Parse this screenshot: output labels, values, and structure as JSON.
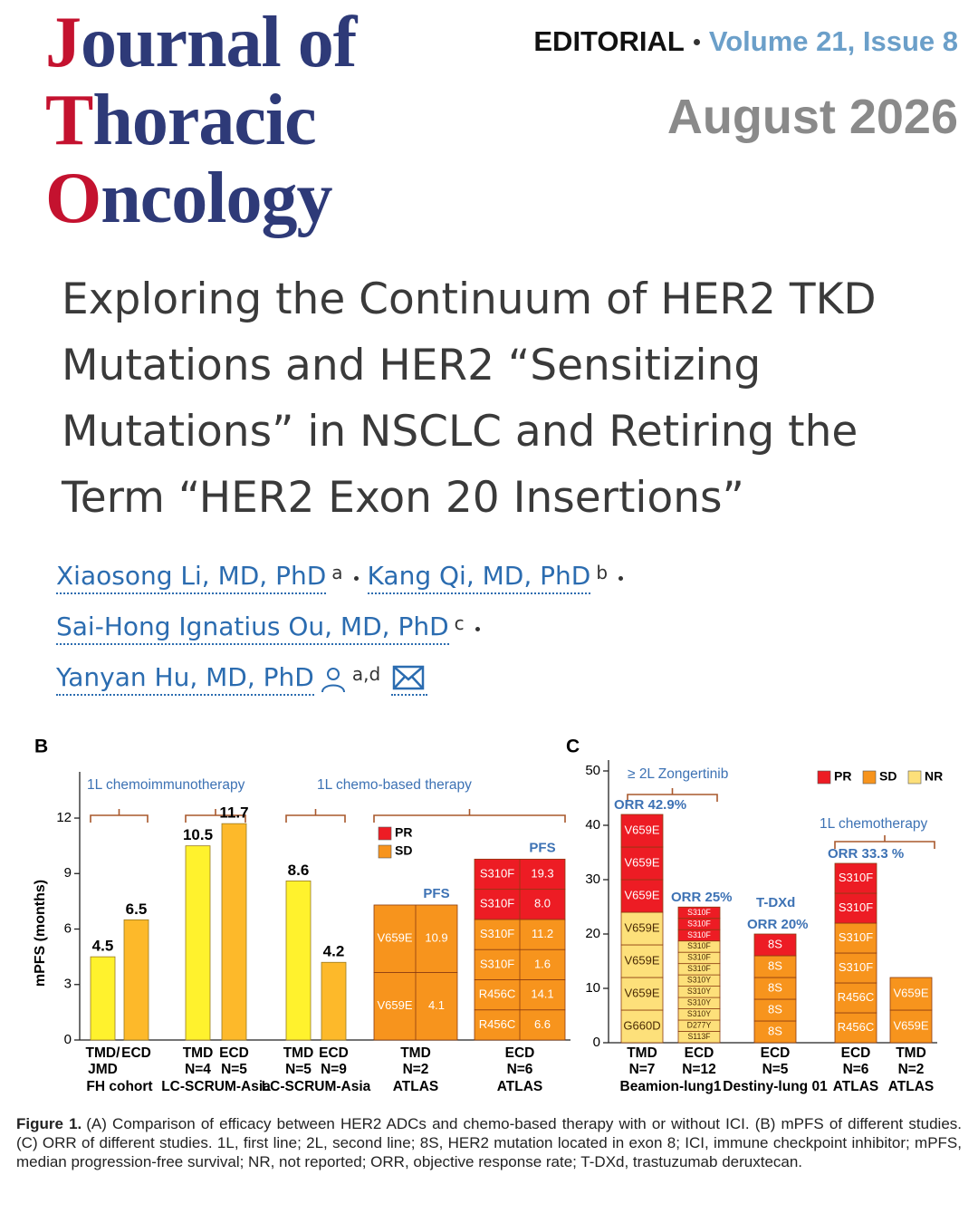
{
  "header": {
    "journal": [
      "Journal of",
      "Thoracic",
      "Oncology"
    ],
    "section": "EDITORIAL",
    "issue": "Volume 21, Issue 8",
    "date": "August 2026"
  },
  "article": {
    "title": [
      "Exploring the Continuum of HER2 TKD",
      "Mutations and HER2 “Sensitizing",
      "Mutations” in NSCLC and Retiring the",
      "Term “HER2 Exon 20 Insertions”"
    ],
    "authors": [
      {
        "name": "Xiaosong Li, MD, PhD",
        "affiliation": "a"
      },
      {
        "name": "Kang Qi, MD, PhD",
        "affiliation": "b"
      },
      {
        "name": "Sai-Hong Ignatius Ou, MD, PhD",
        "affiliation": "c"
      },
      {
        "name": "Yanyan Hu, MD, PhD",
        "affiliation": "a,d"
      }
    ]
  },
  "chart_data": [
    {
      "type": "bar",
      "panel": "B",
      "ylabel": "mPFS (months)",
      "ylim": [
        0,
        14.5
      ],
      "yticks": [
        0,
        3,
        6,
        9,
        12
      ],
      "annotations": [
        "1L chemoimmunotherapy",
        "1L chemo-based  therapy"
      ],
      "legend": [
        {
          "name": "PR",
          "color": "#ed1c24"
        },
        {
          "name": "SD",
          "color": "#f7941d"
        }
      ],
      "groups": [
        {
          "study": "FH cohort",
          "bars": [
            {
              "category": [
                "TMD/",
                "JMD"
              ],
              "value": 4.5,
              "color": "#fff22d"
            },
            {
              "category": [
                "ECD"
              ],
              "value": 6.5,
              "color": "#fdb92a"
            }
          ]
        },
        {
          "study": "LC-SCRUM-Asia",
          "bars": [
            {
              "category": [
                "TMD",
                "N=4"
              ],
              "value": 10.5,
              "color": "#fff22d"
            },
            {
              "category": [
                "ECD",
                "N=5"
              ],
              "value": 11.7,
              "color": "#fdb92a"
            }
          ]
        },
        {
          "study": "LC-SCRUM-Asia",
          "bars": [
            {
              "category": [
                "TMD",
                "N=5"
              ],
              "value": 8.6,
              "color": "#fff22d"
            },
            {
              "category": [
                "ECD",
                "N=9"
              ],
              "value": 4.2,
              "color": "#fdb92a"
            }
          ]
        },
        {
          "study": "ATLAS",
          "bars": [
            {
              "category": [
                "TMD",
                "N=2"
              ],
              "pfs_header": "PFS",
              "segments": [
                {
                  "mutation": "V659E",
                  "pfs": 4.1,
                  "value": 3.65,
                  "color": "#f7941d"
                },
                {
                  "mutation": "V659E",
                  "pfs": 10.9,
                  "value": 3.65,
                  "color": "#f7941d"
                }
              ]
            }
          ]
        },
        {
          "study": "ATLAS",
          "bars": [
            {
              "category": [
                "ECD",
                "N=6"
              ],
              "pfs_header": "PFS",
              "segments": [
                {
                  "mutation": "R456C",
                  "pfs": 6.6,
                  "value": 1.63,
                  "color": "#f7941d"
                },
                {
                  "mutation": "R456C",
                  "pfs": 14.1,
                  "value": 1.63,
                  "color": "#f7941d"
                },
                {
                  "mutation": "S310F",
                  "pfs": 1.6,
                  "value": 1.63,
                  "color": "#f7941d"
                },
                {
                  "mutation": "S310F",
                  "pfs": 11.2,
                  "value": 1.63,
                  "color": "#f7941d"
                },
                {
                  "mutation": "S310F",
                  "pfs": 8,
                  "pfs_label": "8.0",
                  "value": 1.63,
                  "color": "#ed1c24"
                },
                {
                  "mutation": "S310F",
                  "pfs": 19.3,
                  "value": 1.63,
                  "color": "#ed1c24"
                }
              ]
            }
          ]
        }
      ]
    },
    {
      "type": "bar",
      "panel": "C",
      "ylim": [
        0,
        52
      ],
      "yticks": [
        0,
        10,
        20,
        30,
        40,
        50
      ],
      "annotations": [
        "≥ 2L Zongertinib",
        "1L chemotherapy"
      ],
      "legend": [
        {
          "name": "PR",
          "color": "#ed1c24"
        },
        {
          "name": "SD",
          "color": "#f7941d"
        },
        {
          "name": "NR",
          "color": "#fde07a"
        }
      ],
      "groups": [
        {
          "study": "Beamion-lung1",
          "bars": [
            {
              "category": [
                "TMD",
                "N=7"
              ],
              "orr": "ORR 42.9%",
              "segments": [
                {
                  "mutation": "G660D",
                  "value": 6,
                  "color": "#fde07a"
                },
                {
                  "mutation": "V659E",
                  "value": 6,
                  "color": "#fde07a"
                },
                {
                  "mutation": "V659E",
                  "value": 6,
                  "color": "#fde07a"
                },
                {
                  "mutation": "V659E",
                  "value": 6,
                  "color": "#fde07a"
                },
                {
                  "mutation": "V659E",
                  "value": 6,
                  "color": "#ed1c24"
                },
                {
                  "mutation": "V659E",
                  "value": 6,
                  "color": "#ed1c24"
                },
                {
                  "mutation": "V659E",
                  "value": 6,
                  "color": "#ed1c24"
                }
              ]
            },
            {
              "category": [
                "ECD",
                "N=12"
              ],
              "orr": "ORR 25%",
              "segments": [
                {
                  "mutation": "S113F",
                  "value": 2.08,
                  "color": "#fde07a"
                },
                {
                  "mutation": "D277Y",
                  "value": 2.08,
                  "color": "#fde07a"
                },
                {
                  "mutation": "S310Y",
                  "value": 2.08,
                  "color": "#fde07a"
                },
                {
                  "mutation": "S310Y",
                  "value": 2.08,
                  "color": "#fde07a"
                },
                {
                  "mutation": "S310Y",
                  "value": 2.08,
                  "color": "#fde07a"
                },
                {
                  "mutation": "S310Y",
                  "value": 2.08,
                  "color": "#fde07a"
                },
                {
                  "mutation": "S310F",
                  "value": 2.08,
                  "color": "#fde07a"
                },
                {
                  "mutation": "S310F",
                  "value": 2.08,
                  "color": "#fde07a"
                },
                {
                  "mutation": "S310F",
                  "value": 2.08,
                  "color": "#fde07a"
                },
                {
                  "mutation": "S310F",
                  "value": 2.08,
                  "color": "#ed1c24"
                },
                {
                  "mutation": "S310F",
                  "value": 2.08,
                  "color": "#ed1c24"
                },
                {
                  "mutation": "S310F",
                  "value": 2.08,
                  "color": "#ed1c24"
                }
              ]
            }
          ]
        },
        {
          "study": "Destiny-lung 01",
          "bars": [
            {
              "category": [
                "ECD",
                "N=5"
              ],
              "label": "T-DXd",
              "orr": "ORR 20%",
              "segments": [
                {
                  "mutation": "8S",
                  "value": 4,
                  "color": "#f7941d"
                },
                {
                  "mutation": "8S",
                  "value": 4,
                  "color": "#f7941d"
                },
                {
                  "mutation": "8S",
                  "value": 4,
                  "color": "#f7941d"
                },
                {
                  "mutation": "8S",
                  "value": 4,
                  "color": "#f7941d"
                },
                {
                  "mutation": "8S",
                  "value": 4,
                  "color": "#ed1c24"
                }
              ]
            }
          ]
        },
        {
          "study": "ATLAS",
          "bars": [
            {
              "category": [
                "ECD",
                "N=6"
              ],
              "orr": "ORR 33.3 %",
              "segments": [
                {
                  "mutation": "R456C",
                  "value": 5.5,
                  "color": "#f7941d"
                },
                {
                  "mutation": "R456C",
                  "value": 5.5,
                  "color": "#f7941d"
                },
                {
                  "mutation": "S310F",
                  "value": 5.5,
                  "color": "#f7941d"
                },
                {
                  "mutation": "S310F",
                  "value": 5.5,
                  "color": "#f7941d"
                },
                {
                  "mutation": "S310F",
                  "value": 5.5,
                  "color": "#ed1c24"
                },
                {
                  "mutation": "S310F",
                  "value": 5.5,
                  "color": "#ed1c24"
                }
              ]
            }
          ]
        },
        {
          "study": "ATLAS",
          "bars": [
            {
              "category": [
                "TMD",
                "N=2"
              ],
              "segments": [
                {
                  "mutation": "V659E",
                  "value": 6,
                  "color": "#f7941d"
                },
                {
                  "mutation": "V659E",
                  "value": 6,
                  "color": "#f7941d"
                }
              ]
            }
          ]
        }
      ]
    }
  ],
  "caption": {
    "label": "Figure 1.",
    "text": "(A) Comparison of efficacy between HER2 ADCs and chemo-based therapy with or without ICI. (B) mPFS of different studies. (C) ORR of different studies. 1L, first line; 2L, second line; 8S, HER2 mutation located in exon 8; ICI, immune checkpoint inhibitor; mPFS, median progression-free survival; NR, not reported; ORR, objective response rate; T-DXd, trastuzumab deruxtecan."
  }
}
